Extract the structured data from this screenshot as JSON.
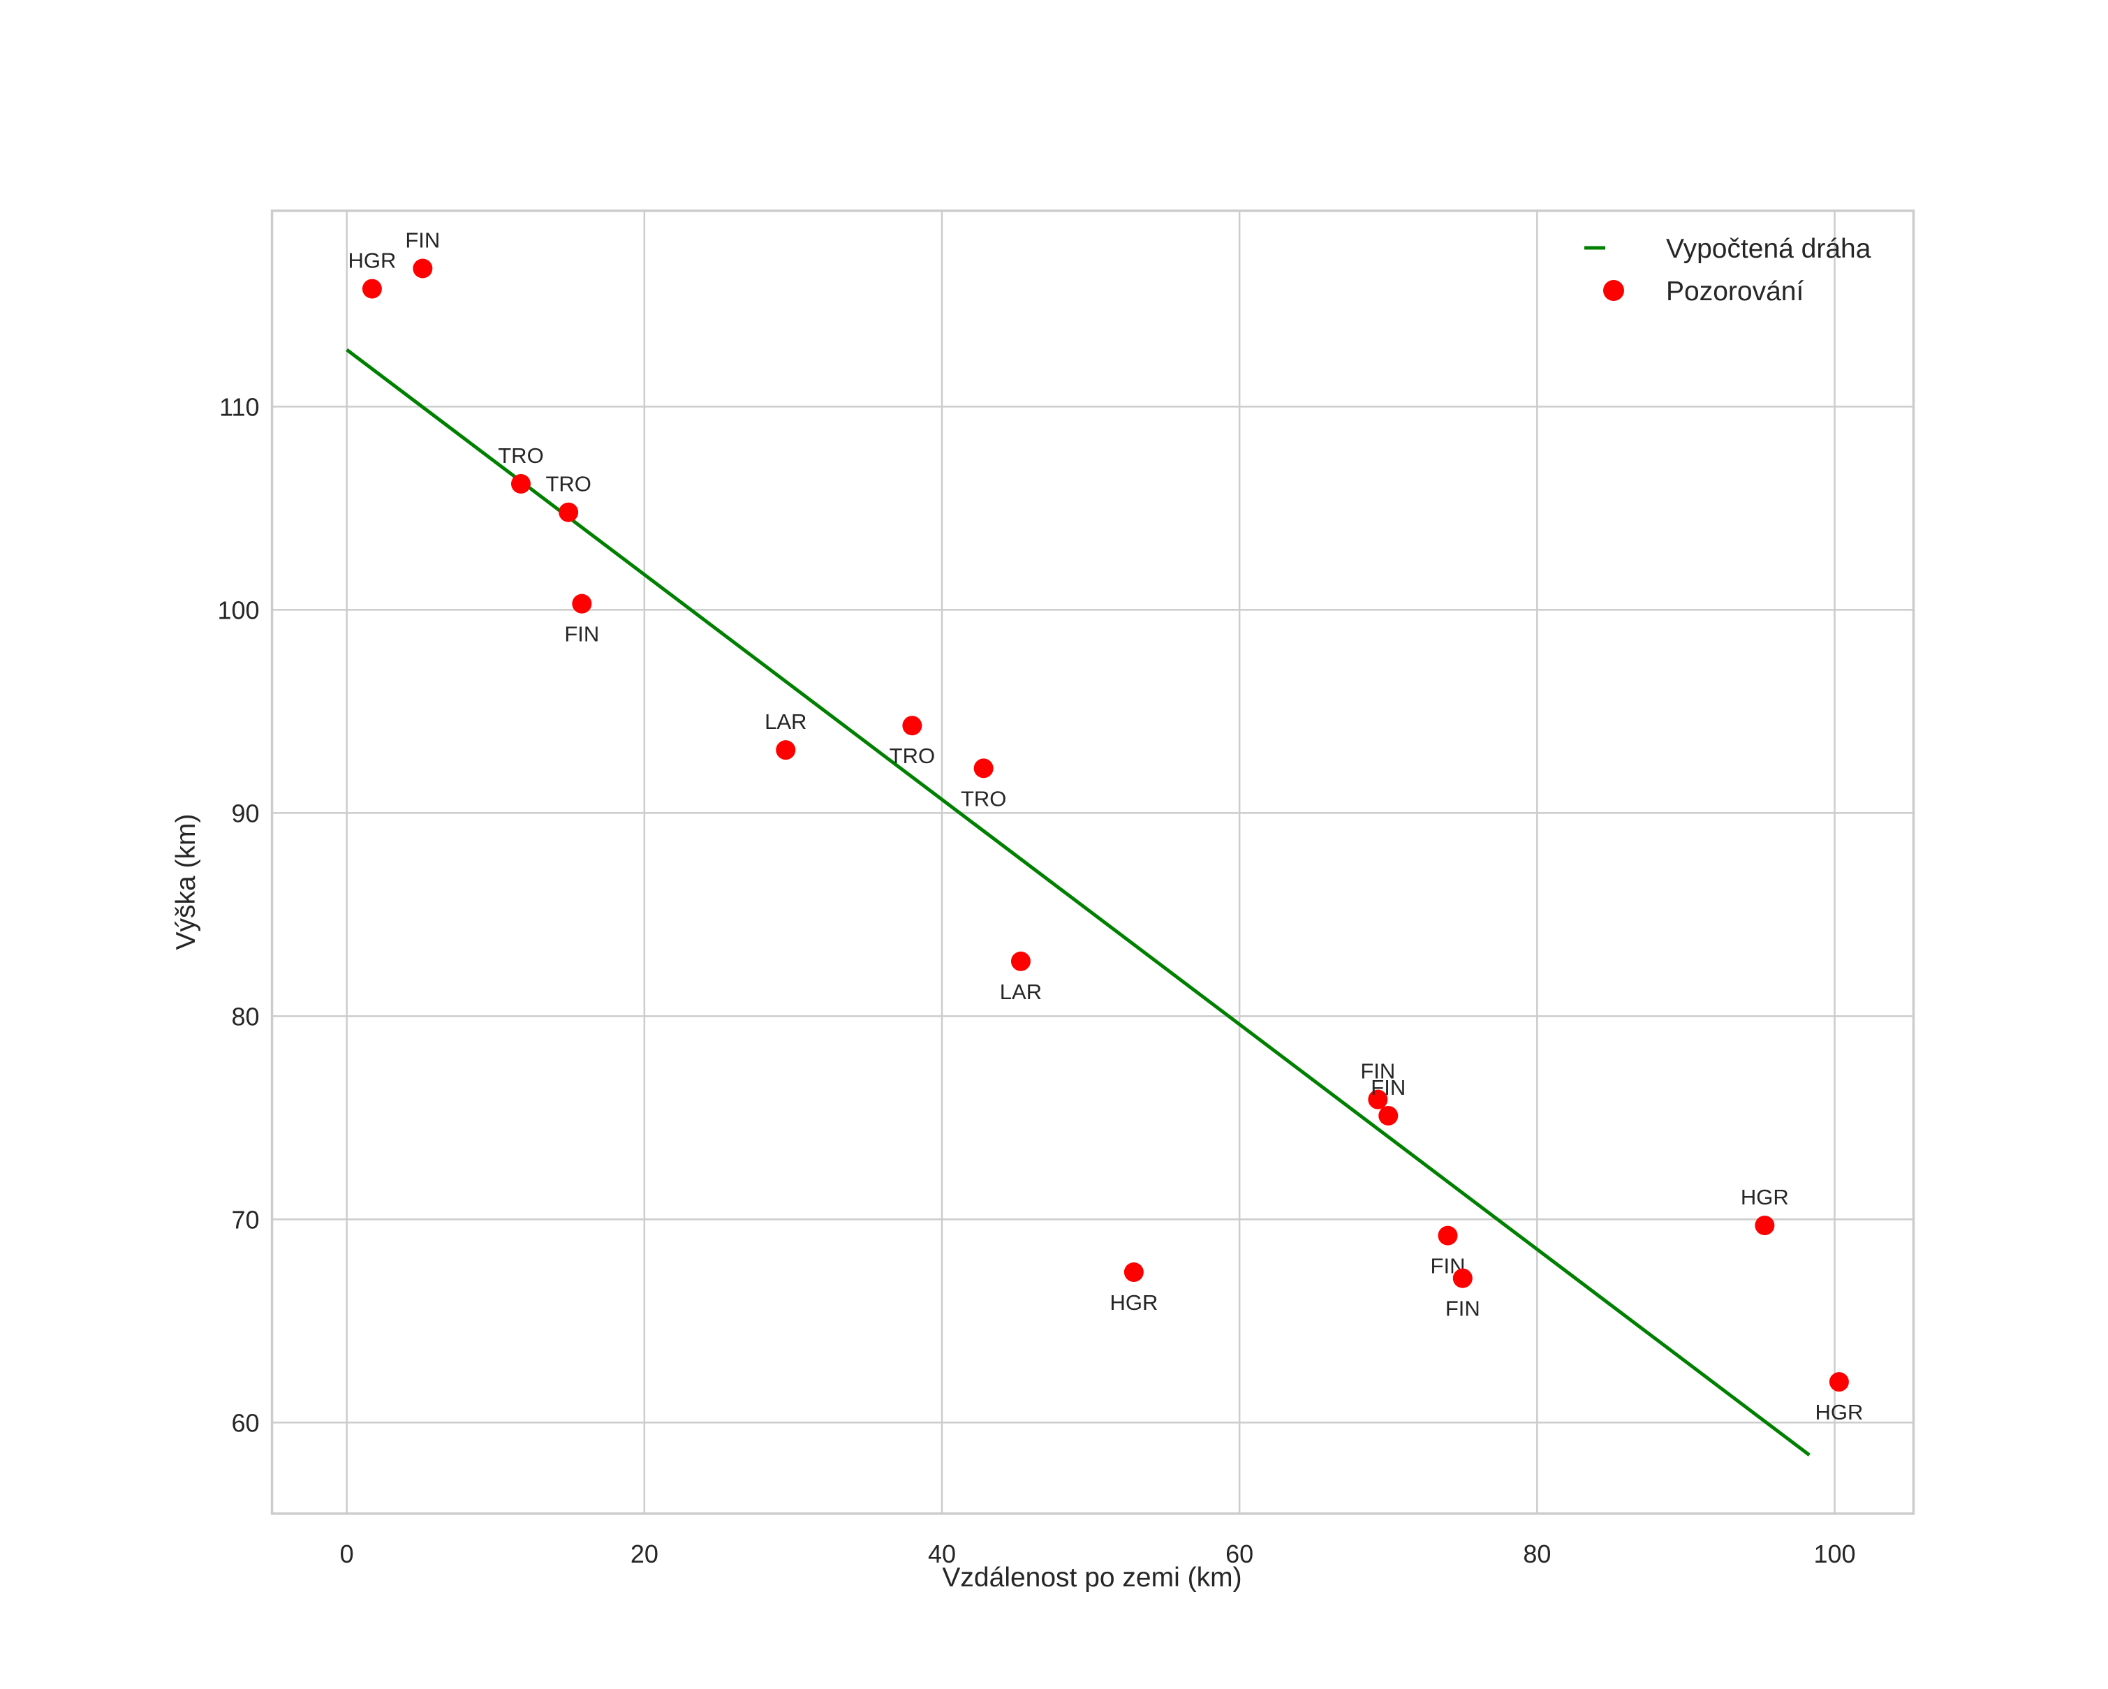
{
  "chart_data": {
    "type": "scatter",
    "title": "",
    "xlabel": "Vzdálenost po zemi (km)",
    "ylabel": "Výška (km)",
    "xlim": [
      -5,
      105.2
    ],
    "ylim": [
      55.5,
      119.7
    ],
    "xticks": [
      0,
      20,
      40,
      60,
      80,
      100
    ],
    "yticks": [
      60,
      70,
      80,
      90,
      100,
      110
    ],
    "grid": true,
    "legend_position": "upper right",
    "legend": [
      {
        "label": "Vypočtená dráha",
        "kind": "line",
        "color": "#008000"
      },
      {
        "label": "Pozorování",
        "kind": "marker",
        "color": "#ff0000"
      }
    ],
    "series": [
      {
        "name": "Vypočtená dráha",
        "type": "line",
        "color": "#008000",
        "x": [
          0,
          98.3
        ],
        "y": [
          112.8,
          58.4
        ]
      },
      {
        "name": "Pozorování",
        "type": "scatter",
        "color": "#ff0000",
        "points": [
          {
            "x": 1.7,
            "y": 115.8,
            "label": "HGR",
            "label_pos": "above"
          },
          {
            "x": 5.1,
            "y": 116.8,
            "label": "FIN",
            "label_pos": "above"
          },
          {
            "x": 11.7,
            "y": 106.2,
            "label": "TRO",
            "label_pos": "above"
          },
          {
            "x": 14.9,
            "y": 104.8,
            "label": "TRO",
            "label_pos": "above"
          },
          {
            "x": 15.8,
            "y": 100.3,
            "label": "FIN",
            "label_pos": "below"
          },
          {
            "x": 29.5,
            "y": 93.1,
            "label": "LAR",
            "label_pos": "above"
          },
          {
            "x": 38.0,
            "y": 94.3,
            "label": "TRO",
            "label_pos": "below"
          },
          {
            "x": 42.8,
            "y": 92.2,
            "label": "TRO",
            "label_pos": "below"
          },
          {
            "x": 45.3,
            "y": 82.7,
            "label": "LAR",
            "label_pos": "below"
          },
          {
            "x": 52.9,
            "y": 67.4,
            "label": "HGR",
            "label_pos": "below"
          },
          {
            "x": 69.3,
            "y": 75.9,
            "label": "FIN",
            "label_pos": "above"
          },
          {
            "x": 70.0,
            "y": 75.1,
            "label": "FIN",
            "label_pos": "above"
          },
          {
            "x": 74.0,
            "y": 69.2,
            "label": "FIN",
            "label_pos": "below"
          },
          {
            "x": 75.0,
            "y": 67.1,
            "label": "FIN",
            "label_pos": "below"
          },
          {
            "x": 95.3,
            "y": 69.7,
            "label": "HGR",
            "label_pos": "above"
          },
          {
            "x": 100.3,
            "y": 62.0,
            "label": "HGR",
            "label_pos": "below"
          }
        ]
      }
    ]
  },
  "colors": {
    "line": "#008000",
    "marker": "#ff0000",
    "grid": "#cccccc",
    "text": "#262626",
    "background": "#ffffff"
  }
}
